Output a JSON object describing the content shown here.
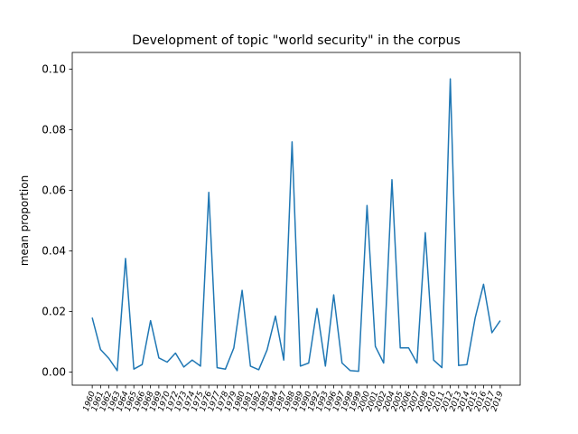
{
  "chart_data": {
    "type": "line",
    "title": "Development of topic \"world security\" in the corpus",
    "ylabel": "mean proportion",
    "categories": [
      "1960",
      "1961",
      "1962",
      "1963",
      "1964",
      "1965",
      "1966",
      "1968",
      "1969",
      "1970",
      "1972",
      "1973",
      "1974",
      "1975",
      "1976",
      "1977",
      "1978",
      "1979",
      "1980",
      "1981",
      "1982",
      "1983",
      "1984",
      "1987",
      "1988",
      "1989",
      "1990",
      "1992",
      "1993",
      "1996",
      "1997",
      "1998",
      "1999",
      "2000",
      "2001",
      "2002",
      "2004",
      "2005",
      "2006",
      "2007",
      "2008",
      "2010",
      "2011",
      "2012",
      "2013",
      "2014",
      "2015",
      "2016",
      "2017",
      "2019"
    ],
    "series": [
      {
        "name": "world security",
        "color": "#1f77b4",
        "values": [
          0.018,
          0.0075,
          0.0045,
          0.0005,
          0.0375,
          0.001,
          0.0025,
          0.017,
          0.0047,
          0.0033,
          0.0063,
          0.0017,
          0.004,
          0.002,
          0.0593,
          0.0015,
          0.001,
          0.008,
          0.027,
          0.002,
          0.0008,
          0.0073,
          0.0185,
          0.004,
          0.076,
          0.002,
          0.003,
          0.021,
          0.002,
          0.0255,
          0.003,
          0.0005,
          0.0003,
          0.055,
          0.0085,
          0.003,
          0.0635,
          0.008,
          0.008,
          0.003,
          0.046,
          0.004,
          0.0015,
          0.0968,
          0.0022,
          0.0025,
          0.018,
          0.029,
          0.013,
          0.017
        ]
      }
    ],
    "ylim": [
      -0.0043,
      0.1055
    ],
    "yticks": [
      {
        "value": 0,
        "label": "0.00"
      },
      {
        "value": 0.02,
        "label": "0.02"
      },
      {
        "value": 0.04,
        "label": "0.04"
      },
      {
        "value": 0.06,
        "label": "0.06"
      },
      {
        "value": 0.08,
        "label": "0.08"
      },
      {
        "value": 0.1,
        "label": "0.10"
      }
    ]
  }
}
